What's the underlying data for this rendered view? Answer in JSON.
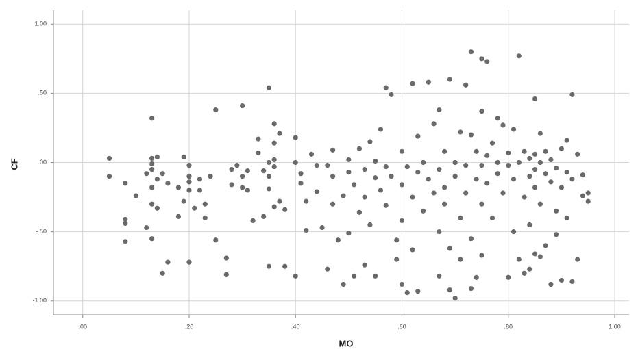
{
  "chart_data": {
    "type": "scatter",
    "x_label": "MO",
    "y_label": "CF",
    "color": "#6a6a6a",
    "grid": true,
    "xlim": [
      -0.055,
      1.027
    ],
    "ylim": [
      -1.1,
      1.1
    ],
    "xticks": [
      {
        "value": 0,
        "label": ".00"
      },
      {
        "value": 0.2,
        "label": ".20"
      },
      {
        "value": 0.4,
        "label": ".40"
      },
      {
        "value": 0.6,
        "label": ".60"
      },
      {
        "value": 0.8,
        "label": ".80"
      },
      {
        "value": 1,
        "label": "1.00"
      }
    ],
    "yticks": [
      {
        "value": 1,
        "label": "1.00"
      },
      {
        "value": 0.5,
        "label": ".50"
      },
      {
        "value": 0,
        "label": ".00"
      },
      {
        "value": -0.5,
        "label": "-.50"
      },
      {
        "value": -1,
        "label": "-1.00"
      }
    ],
    "x": [
      0.05,
      0.05,
      0.08,
      0.08,
      0.08,
      0.08,
      0.1,
      0.12,
      0.12,
      0.13,
      0.13,
      0.13,
      0.13,
      0.13,
      0.13,
      0.13,
      0.14,
      0.14,
      0.14,
      0.15,
      0.15,
      0.16,
      0.16,
      0.18,
      0.18,
      0.19,
      0.19,
      0.2,
      0.2,
      0.2,
      0.2,
      0.2,
      0.21,
      0.22,
      0.22,
      0.23,
      0.23,
      0.24,
      0.25,
      0.25,
      0.27,
      0.27,
      0.28,
      0.28,
      0.29,
      0.3,
      0.3,
      0.3,
      0.31,
      0.31,
      0.32,
      0.33,
      0.33,
      0.34,
      0.34,
      0.35,
      0.35,
      0.35,
      0.35,
      0.35,
      0.36,
      0.36,
      0.36,
      0.36,
      0.36,
      0.37,
      0.37,
      0.38,
      0.38,
      0.4,
      0.4,
      0.4,
      0.41,
      0.41,
      0.42,
      0.42,
      0.43,
      0.44,
      0.44,
      0.45,
      0.46,
      0.46,
      0.47,
      0.47,
      0.47,
      0.48,
      0.49,
      0.49,
      0.5,
      0.5,
      0.5,
      0.51,
      0.51,
      0.52,
      0.52,
      0.53,
      0.53,
      0.53,
      0.54,
      0.54,
      0.55,
      0.55,
      0.55,
      0.56,
      0.56,
      0.57,
      0.57,
      0.57,
      0.58,
      0.58,
      0.59,
      0.59,
      0.6,
      0.6,
      0.6,
      0.6,
      0.61,
      0.61,
      0.62,
      0.62,
      0.62,
      0.63,
      0.63,
      0.63,
      0.64,
      0.64,
      0.65,
      0.65,
      0.66,
      0.66,
      0.67,
      0.67,
      0.67,
      0.67,
      0.68,
      0.68,
      0.68,
      0.69,
      0.69,
      0.69,
      0.7,
      0.7,
      0.7,
      0.71,
      0.71,
      0.71,
      0.72,
      0.72,
      0.72,
      0.73,
      0.73,
      0.73,
      0.73,
      0.74,
      0.74,
      0.74,
      0.75,
      0.75,
      0.75,
      0.75,
      0.75,
      0.76,
      0.76,
      0.76,
      0.77,
      0.77,
      0.78,
      0.78,
      0.78,
      0.79,
      0.79,
      0.8,
      0.8,
      0.8,
      0.81,
      0.81,
      0.81,
      0.82,
      0.82,
      0.82,
      0.83,
      0.83,
      0.83,
      0.84,
      0.84,
      0.84,
      0.84,
      0.85,
      0.85,
      0.85,
      0.85,
      0.85,
      0.86,
      0.86,
      0.86,
      0.86,
      0.87,
      0.87,
      0.87,
      0.88,
      0.88,
      0.88,
      0.89,
      0.89,
      0.89,
      0.9,
      0.9,
      0.9,
      0.91,
      0.91,
      0.91,
      0.92,
      0.92,
      0.92,
      0.93,
      0.93,
      0.94,
      0.94,
      0.95,
      0.95
    ],
    "values": [
      0.03,
      -0.1,
      -0.15,
      -0.41,
      -0.44,
      -0.57,
      -0.24,
      -0.47,
      -0.08,
      0.32,
      0.03,
      -0.01,
      -0.05,
      -0.18,
      -0.3,
      -0.55,
      0.04,
      -0.12,
      -0.33,
      -0.08,
      -0.8,
      -0.72,
      -0.15,
      -0.39,
      -0.18,
      0.04,
      -0.28,
      -0.02,
      -0.1,
      -0.14,
      -0.2,
      -0.72,
      -0.33,
      -0.2,
      -0.12,
      -0.3,
      -0.4,
      -0.1,
      0.38,
      -0.56,
      -0.69,
      -0.81,
      -0.05,
      -0.16,
      -0.02,
      0.41,
      -0.1,
      -0.18,
      -0.2,
      -0.06,
      -0.42,
      0.17,
      0.07,
      -0.06,
      -0.39,
      0.54,
      0.0,
      -0.1,
      -0.19,
      -0.75,
      0.28,
      0.14,
      0.02,
      -0.03,
      -0.32,
      0.21,
      -0.28,
      -0.34,
      -0.75,
      0.18,
      0.0,
      -0.82,
      -0.08,
      -0.15,
      -0.49,
      -0.28,
      0.06,
      -0.02,
      -0.21,
      -0.47,
      -0.77,
      -0.02,
      -0.1,
      0.09,
      -0.3,
      -0.56,
      -0.88,
      -0.24,
      -0.07,
      0.02,
      -0.51,
      -0.16,
      -0.82,
      0.1,
      -0.36,
      -0.05,
      -0.74,
      -0.25,
      0.15,
      -0.45,
      -0.11,
      0.01,
      -0.82,
      0.24,
      -0.2,
      0.54,
      -0.03,
      -0.31,
      0.49,
      -0.1,
      -0.56,
      -0.7,
      0.08,
      -0.16,
      -0.42,
      -0.88,
      -0.03,
      -0.94,
      0.57,
      -0.25,
      -0.63,
      0.19,
      -0.07,
      -0.93,
      -0.35,
      0.0,
      0.58,
      -0.12,
      0.28,
      -0.22,
      0.38,
      -0.05,
      -0.5,
      -0.82,
      0.08,
      -0.18,
      -0.3,
      0.6,
      -0.62,
      -0.92,
      0.0,
      -0.1,
      -0.98,
      0.22,
      -0.4,
      -0.7,
      0.56,
      -0.02,
      -0.22,
      0.8,
      0.2,
      -0.55,
      -0.91,
      0.08,
      -0.12,
      -0.83,
      0.75,
      0.37,
      -0.02,
      -0.3,
      -0.67,
      0.73,
      0.05,
      -0.15,
      0.14,
      -0.4,
      0.32,
      0.0,
      -0.08,
      0.27,
      -0.22,
      0.07,
      -0.02,
      -0.83,
      0.24,
      -0.12,
      -0.5,
      0.77,
      0.0,
      -0.7,
      0.08,
      -0.25,
      -0.8,
      0.03,
      -0.1,
      -0.45,
      -0.77,
      0.46,
      0.06,
      -0.05,
      -0.18,
      -0.66,
      0.21,
      0.0,
      -0.3,
      -0.68,
      0.08,
      -0.08,
      -0.6,
      0.02,
      -0.14,
      -0.88,
      -0.04,
      -0.35,
      -0.52,
      0.1,
      -0.18,
      -0.85,
      0.16,
      -0.07,
      -0.4,
      0.49,
      -0.12,
      -0.86,
      0.06,
      -0.7,
      -0.09,
      -0.24,
      -0.22,
      -0.28
    ]
  }
}
